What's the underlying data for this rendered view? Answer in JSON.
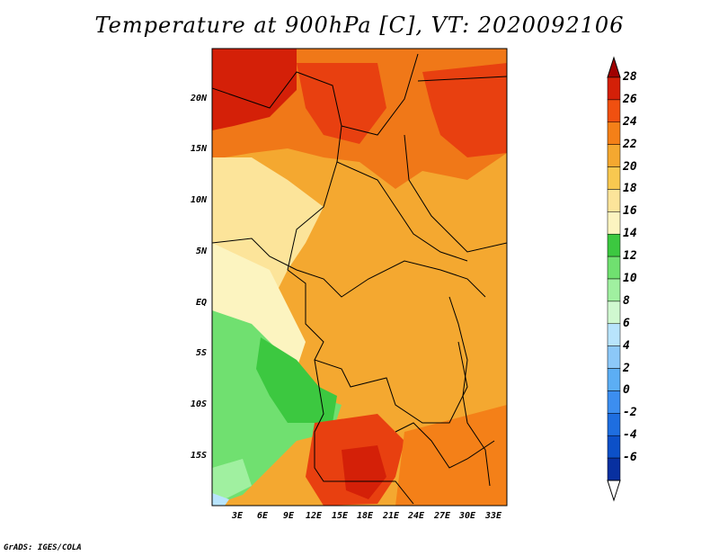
{
  "title": "Temperature at 900hPa [C], VT: 2020092106",
  "credit": "GrADS: IGES/COLA",
  "map": {
    "lat_ticks": [
      "20N",
      "15N",
      "10N",
      "5N",
      "EQ",
      "5S",
      "10S",
      "15S"
    ],
    "lon_ticks": [
      "3E",
      "6E",
      "9E",
      "12E",
      "15E",
      "18E",
      "21E",
      "24E",
      "27E",
      "30E",
      "33E"
    ],
    "shading": {
      "hot_north": "#e8200a",
      "warm": "#f4a030",
      "mild": "#fce49a",
      "cool_green": "#5ee060",
      "deep_green": "#3cc840"
    }
  },
  "colorbar": {
    "labels": [
      "28",
      "26",
      "24",
      "22",
      "20",
      "18",
      "16",
      "14",
      "12",
      "10",
      "8",
      "6",
      "4",
      "2",
      "0",
      "-2",
      "-4",
      "-6"
    ],
    "colors": [
      "#a00000",
      "#d42008",
      "#f05010",
      "#f48018",
      "#f4a830",
      "#f8c850",
      "#fce49a",
      "#fcf4c0",
      "#3cc840",
      "#70e070",
      "#a0f0a0",
      "#d0f8d0",
      "#b8e4fc",
      "#8cc8f8",
      "#5caef4",
      "#3c8ef0",
      "#1e6ee0",
      "#0c50c8",
      "#0830a0",
      "#ffffff"
    ]
  }
}
